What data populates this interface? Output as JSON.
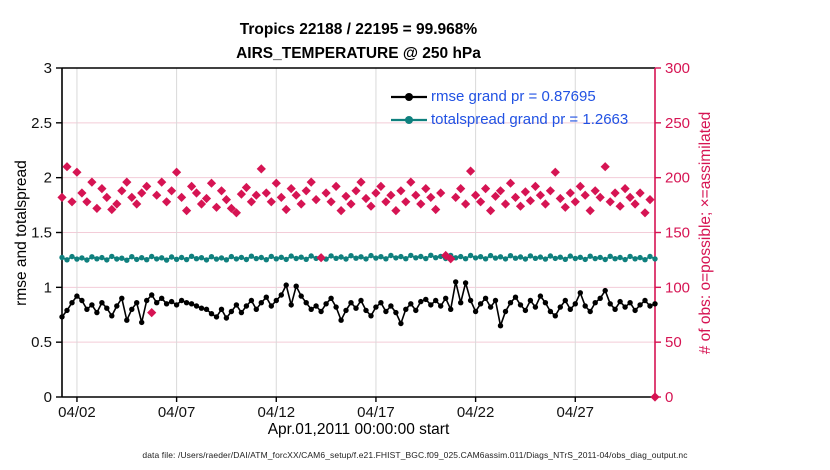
{
  "title": {
    "line1": "Tropics 22188 / 22195 = 99.968%",
    "line2": "AIRS_TEMPERATURE @ 250 hPa"
  },
  "legend": {
    "items": [
      {
        "label": "rmse grand pr = 0.87695",
        "color": "#000000",
        "marker": "circle"
      },
      {
        "label": "totalspread grand pr = 1.2663",
        "color": "#0F807E",
        "marker": "circle"
      }
    ],
    "text_color": "#2152E3"
  },
  "footer": "data file: /Users/raeder/DAI/ATM_forcXX/CAM6_setup/f.e21.FHIST_BGC.f09_025.CAM6assim.011/Diags_NTrS_2011-04/obs_diag_output.nc",
  "colors": {
    "crimson": "#D61453",
    "teal": "#0F807E",
    "black": "#000000",
    "legend_blue": "#2152E3",
    "grid_pink": "#F3CCD8",
    "grid_gray": "#D9D9D9"
  },
  "chart_data": {
    "type": "line",
    "title": "Tropics 22188 / 22195 = 99.968% | AIRS_TEMPERATURE @ 250 hPa",
    "x_axis": {
      "label": "Apr.01,2011 00:00:00 start",
      "range_days": [
        1.25,
        31.0
      ],
      "tick_days": [
        2,
        7,
        12,
        17,
        22,
        27
      ],
      "tick_labels": [
        "04/02",
        "04/07",
        "04/12",
        "04/17",
        "04/22",
        "04/27"
      ]
    },
    "y_left": {
      "label": "rmse and totalspread",
      "range": [
        0,
        3
      ],
      "ticks": [
        0,
        0.5,
        1,
        1.5,
        2,
        2.5,
        3
      ],
      "tick_labels": [
        "0",
        "0.5",
        "1",
        "1.5",
        "2",
        "2.5",
        "3"
      ],
      "grid": [
        0.5,
        1,
        1.5,
        2,
        2.5
      ]
    },
    "y_right": {
      "label": "# of obs: o=possible; ×=assimilated",
      "range": [
        0,
        300
      ],
      "ticks": [
        0,
        50,
        100,
        150,
        200,
        250,
        300
      ],
      "tick_labels": [
        "0",
        "50",
        "100",
        "150",
        "200",
        "250",
        "300"
      ]
    },
    "x_start_day": 1.25,
    "x_step_days": 0.25,
    "series": [
      {
        "name": "rmse",
        "axis": "left",
        "plot": "line",
        "marker": "circle",
        "color": "#000000",
        "grand_mean": 0.87695,
        "values": [
          0.73,
          0.79,
          0.86,
          0.92,
          0.88,
          0.8,
          0.84,
          0.77,
          0.86,
          0.81,
          0.74,
          0.83,
          0.9,
          0.7,
          0.8,
          0.86,
          0.68,
          0.88,
          0.93,
          0.86,
          0.9,
          0.85,
          0.87,
          0.84,
          0.88,
          0.86,
          0.85,
          0.83,
          0.81,
          0.8,
          0.76,
          0.73,
          0.8,
          0.72,
          0.78,
          0.84,
          0.77,
          0.83,
          0.88,
          0.8,
          0.86,
          0.91,
          0.83,
          0.88,
          0.93,
          1.02,
          0.84,
          1.01,
          0.92,
          0.86,
          0.8,
          0.83,
          0.78,
          0.85,
          0.9,
          0.82,
          0.7,
          0.79,
          0.86,
          0.81,
          0.88,
          0.79,
          0.74,
          0.82,
          0.86,
          0.78,
          0.83,
          0.77,
          0.67,
          0.8,
          0.85,
          0.79,
          0.87,
          0.89,
          0.84,
          0.88,
          0.83,
          0.9,
          0.8,
          1.05,
          0.86,
          1.04,
          0.88,
          0.78,
          0.85,
          0.9,
          0.82,
          0.88,
          0.65,
          0.78,
          0.86,
          0.91,
          0.84,
          0.79,
          0.88,
          0.82,
          0.92,
          0.86,
          0.78,
          0.74,
          0.82,
          0.88,
          0.8,
          0.85,
          0.95,
          0.83,
          0.78,
          0.86,
          0.9,
          0.97,
          0.85,
          0.8,
          0.87,
          0.82,
          0.86,
          0.79,
          0.84,
          0.88,
          0.83,
          0.85
        ]
      },
      {
        "name": "totalspread",
        "axis": "left",
        "plot": "line",
        "marker": "circle",
        "color": "#0F807E",
        "grand_mean": 1.2663,
        "values": [
          1.272,
          1.251,
          1.28,
          1.257,
          1.268,
          1.249,
          1.278,
          1.26,
          1.271,
          1.25,
          1.282,
          1.258,
          1.266,
          1.247,
          1.279,
          1.255,
          1.27,
          1.252,
          1.281,
          1.259,
          1.269,
          1.248,
          1.277,
          1.256,
          1.272,
          1.253,
          1.283,
          1.261,
          1.27,
          1.25,
          1.279,
          1.257,
          1.268,
          1.251,
          1.28,
          1.259,
          1.273,
          1.254,
          1.284,
          1.262,
          1.272,
          1.252,
          1.282,
          1.26,
          1.274,
          1.255,
          1.285,
          1.263,
          1.275,
          1.256,
          1.286,
          1.264,
          1.276,
          1.257,
          1.287,
          1.265,
          1.277,
          1.258,
          1.288,
          1.266,
          1.278,
          1.259,
          1.289,
          1.267,
          1.279,
          1.26,
          1.29,
          1.268,
          1.28,
          1.261,
          1.291,
          1.269,
          1.281,
          1.262,
          1.292,
          1.27,
          1.282,
          1.263,
          1.291,
          1.269,
          1.28,
          1.261,
          1.29,
          1.268,
          1.279,
          1.26,
          1.289,
          1.267,
          1.278,
          1.259,
          1.288,
          1.266,
          1.277,
          1.258,
          1.287,
          1.265,
          1.276,
          1.257,
          1.286,
          1.264,
          1.275,
          1.256,
          1.285,
          1.263,
          1.274,
          1.255,
          1.284,
          1.262,
          1.273,
          1.254,
          1.283,
          1.261,
          1.272,
          1.253,
          1.282,
          1.26,
          1.271,
          1.252,
          1.281,
          1.259
        ]
      },
      {
        "name": "obs_assimilated",
        "axis": "right",
        "plot": "scatter",
        "marker": "diamond",
        "color": "#D61453",
        "values": [
          182,
          210,
          178,
          205,
          186,
          178,
          196,
          172,
          190,
          182,
          171,
          176,
          188,
          196,
          182,
          176,
          186,
          192,
          77,
          184,
          196,
          178,
          188,
          205,
          182,
          170,
          192,
          186,
          176,
          181,
          195,
          173,
          188,
          180,
          172,
          168,
          185,
          191,
          178,
          184,
          208,
          186,
          178,
          195,
          182,
          171,
          190,
          184,
          176,
          188,
          196,
          180,
          127,
          186,
          178,
          192,
          170,
          183,
          176,
          188,
          196,
          181,
          174,
          186,
          192,
          178,
          184,
          170,
          188,
          178,
          196,
          184,
          176,
          190,
          182,
          171,
          186,
          129,
          126,
          182,
          190,
          176,
          206,
          184,
          178,
          190,
          170,
          183,
          188,
          176,
          195,
          182,
          174,
          187,
          179,
          192,
          184,
          176,
          188,
          205,
          181,
          173,
          186,
          178,
          192,
          184,
          170,
          188,
          182,
          210,
          178,
          186,
          174,
          190,
          182,
          176,
          186,
          168,
          180,
          0
        ]
      }
    ]
  }
}
